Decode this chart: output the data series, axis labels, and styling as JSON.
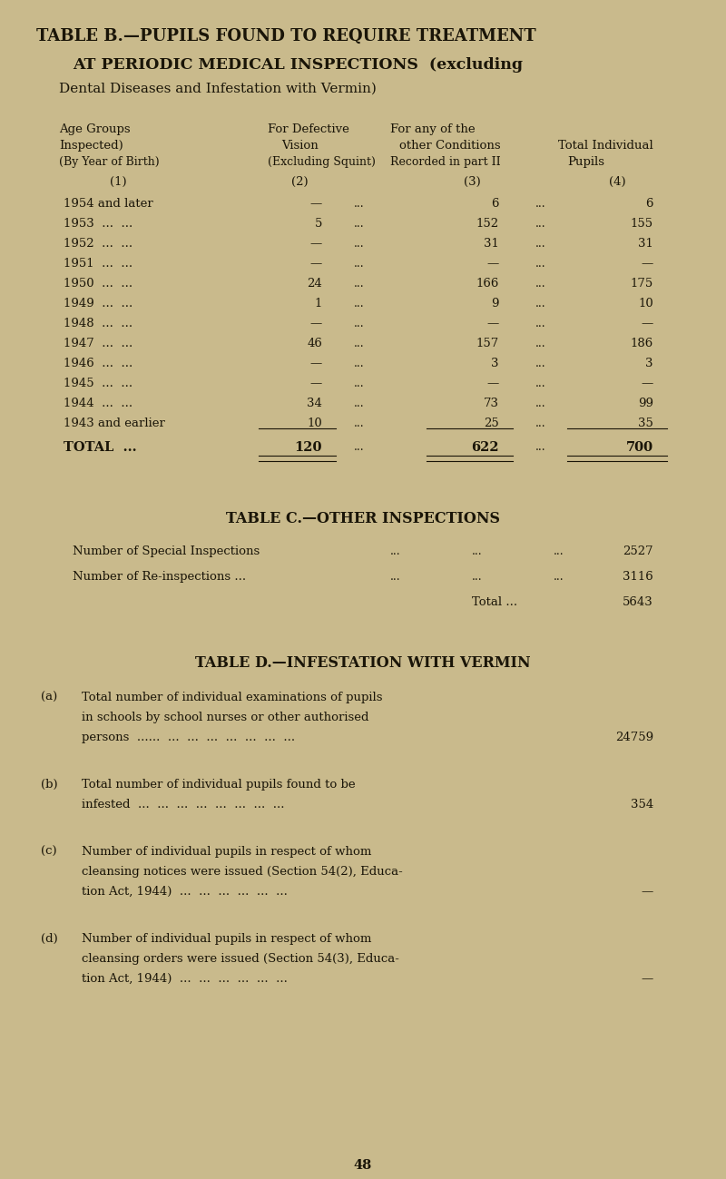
{
  "bg_color": "#c9ba8c",
  "text_color": "#1a1508",
  "page_number": "48",
  "title_b_line1": "TABLE B.—PUPILS FOUND TO REQUIRE TREATMENT",
  "title_b_line2": "AT PERIODIC MEDICAL INSPECTIONS  (excluding",
  "title_b_line3": "Dental Diseases and Infestation with Vermin)",
  "col1_header": [
    "Age Groups",
    "Inspected)",
    "(By Year of Birth)"
  ],
  "col2_header": [
    "For Defective",
    "Vision",
    "(Excluding Squint)"
  ],
  "col3_header": [
    "For any of the",
    "other Conditions",
    "Recorded in part II"
  ],
  "col4_header": [
    "Total Individual",
    "Pupils",
    ""
  ],
  "col_nums": [
    "(1)",
    "(2)",
    "(3)",
    "(4)"
  ],
  "rows": [
    [
      "1954 and later",
      "—",
      "6",
      "6"
    ],
    [
      "1953  ...  ...",
      "5",
      "152",
      "155"
    ],
    [
      "1952  ...  ...",
      "—",
      "31",
      "31"
    ],
    [
      "1951  ...  ...",
      "—",
      "—",
      "—"
    ],
    [
      "1950  ...  ...",
      "24",
      "166",
      "175"
    ],
    [
      "1949  ...  ...",
      "1",
      "9",
      "10"
    ],
    [
      "1948  ...  ...",
      "—",
      "—",
      "—"
    ],
    [
      "1947  ...  ...",
      "46",
      "157",
      "186"
    ],
    [
      "1946  ...  ...",
      "—",
      "3",
      "3"
    ],
    [
      "1945  ...  ...",
      "—",
      "—",
      "—"
    ],
    [
      "1944  ...  ...",
      "34",
      "73",
      "99"
    ],
    [
      "1943 and earlier",
      "10",
      "25",
      "35"
    ]
  ],
  "total_row": [
    "TOTAL  ...",
    "120",
    "622",
    "700"
  ],
  "table_c_title": "TABLE C.—OTHER INSPECTIONS",
  "table_c_row1_label": "Number of Special Inspections",
  "table_c_row1_dots": "...          ...       ...",
  "table_c_row1_val": "2527",
  "table_c_row2_label": "Number of Re-inspections ...",
  "table_c_row2_dots": "...          ...       ...",
  "table_c_row2_val": "3116",
  "table_c_total_label": "Total ...",
  "table_c_total_val": "5643",
  "table_d_title": "TABLE D.—INFESTATION WITH VERMIN",
  "table_d_items": [
    {
      "label": "(a)",
      "lines": [
        "Total number of individual examinations of pupils",
        "in schools by school nurses or other authorised",
        "persons  ......  ...  ...  ...  ...  ...  ...  ... 24759"
      ],
      "value": "24759",
      "value_line": 2
    },
    {
      "label": "(b)",
      "lines": [
        "Total number of individual pupils found to be",
        "infested  ...  ...  ...  ...  ...  ...  ...  ... 354"
      ],
      "value": "354",
      "value_line": 1
    },
    {
      "label": "(c)",
      "lines": [
        "Number of individual pupils in respect of whom",
        "cleansing notices were issued (Section 54(2), Educa-",
        "tion Act, 1944)  ...  ...  ...  ...  ...  ...  —"
      ],
      "value": "—",
      "value_line": 2
    },
    {
      "label": "(d)",
      "lines": [
        "Number of individual pupils in respect of whom",
        "cleansing orders were issued (Section 54(3), Educa-",
        "tion Act, 1944)  ...  ...  ...  ...  ...  ...  —"
      ],
      "value": "—",
      "value_line": 2
    }
  ]
}
